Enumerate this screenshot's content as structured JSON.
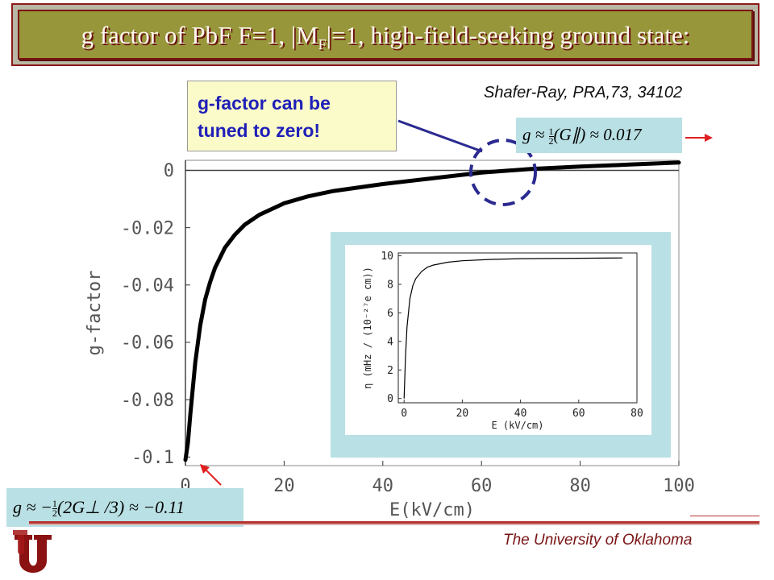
{
  "title": {
    "pre": "g factor of PbF F=1, |M",
    "sub": "F",
    "post": "|=1, high-field-seeking ground state:"
  },
  "citation": "Shafer-Ray, PRA,73, 34102",
  "callout": {
    "line1": "g-factor can be",
    "line2": "tuned to zero!"
  },
  "formula_top": {
    "pre": "g ≈ ",
    "frac_num": "1",
    "frac_den": "2",
    "post": "(G∥) ≈ 0.017"
  },
  "formula_bottom": {
    "pre": "g ≈ −",
    "frac_num": "1",
    "frac_den": "2",
    "post": "(2G⊥ /3) ≈ −0.11"
  },
  "footer": {
    "university": "The University of Oklahoma"
  },
  "colors": {
    "title_bg": "#97963b",
    "title_border": "#7a1414",
    "callout_text": "#1f1fb8",
    "dashed_circle": "#2a2a90",
    "arrow": "#e02020",
    "inset_bg": "#b9e0e4",
    "footer": "#7a1414"
  },
  "chart_data": [
    {
      "type": "line",
      "title": "",
      "xlabel": "E(kV/cm)",
      "ylabel": "g-factor",
      "xlim": [
        0,
        100
      ],
      "ylim": [
        -0.103,
        0.0035
      ],
      "xticks": [
        0,
        20,
        40,
        60,
        80,
        100
      ],
      "yticks": [
        0,
        -0.02,
        -0.04,
        -0.06,
        -0.08,
        -0.1
      ],
      "xtick_labels": [
        "0",
        "20",
        "40",
        "60",
        "80",
        "100"
      ],
      "ytick_labels": [
        "0",
        "-0.02",
        "-0.04",
        "-0.06",
        "-0.08",
        "-0.1"
      ],
      "grid": false,
      "series": [
        {
          "x": [
            0,
            0.5,
            1,
            2,
            3,
            4,
            5,
            6,
            8,
            10,
            12,
            15,
            20,
            25,
            30,
            40,
            50,
            60,
            70,
            80,
            90,
            100
          ],
          "y": [
            -0.101,
            -0.095,
            -0.085,
            -0.067,
            -0.054,
            -0.045,
            -0.039,
            -0.034,
            -0.027,
            -0.0225,
            -0.019,
            -0.0155,
            -0.0115,
            -0.009,
            -0.0072,
            -0.0048,
            -0.0028,
            -0.0008,
            0.0005,
            0.0013,
            0.002,
            0.0027
          ]
        }
      ]
    },
    {
      "type": "line",
      "title": "",
      "xlabel": "E (kV/cm)",
      "ylabel": "η  (mHz / (10⁻²⁷e cm))",
      "xlim": [
        -2,
        80
      ],
      "ylim": [
        -0.3,
        10.2
      ],
      "xticks": [
        0,
        20,
        40,
        60,
        80
      ],
      "yticks": [
        0,
        2,
        4,
        6,
        8,
        10
      ],
      "xtick_labels": [
        "0",
        "20",
        "40",
        "60",
        "80"
      ],
      "ytick_labels": [
        "0",
        "2",
        "4",
        "6",
        "8",
        "10"
      ],
      "grid": false,
      "series": [
        {
          "x": [
            0,
            0.5,
            1,
            2,
            3,
            4,
            6,
            8,
            10,
            15,
            20,
            30,
            40,
            60,
            75
          ],
          "y": [
            0,
            3.0,
            5.0,
            7.0,
            7.9,
            8.4,
            8.9,
            9.2,
            9.35,
            9.55,
            9.65,
            9.75,
            9.8,
            9.83,
            9.85
          ]
        }
      ]
    }
  ]
}
